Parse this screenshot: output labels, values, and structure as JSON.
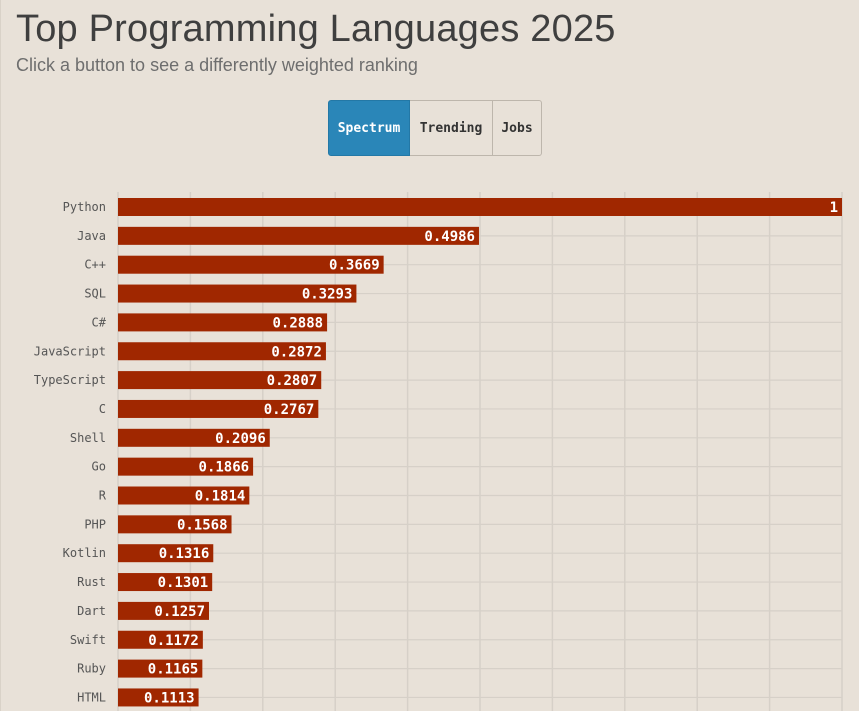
{
  "header": {
    "title": "Top Programming Languages 2025",
    "subtitle": "Click a button to see a differently weighted ranking"
  },
  "buttons": [
    {
      "label": "Spectrum",
      "active": true
    },
    {
      "label": "Trending",
      "active": false
    },
    {
      "label": "Jobs",
      "active": false
    }
  ],
  "colors": {
    "bar": "#a02700",
    "active_button": "#2a86b8",
    "background": "#e8e1d8",
    "grid": "#d6d0c8"
  },
  "chart_data": {
    "type": "bar",
    "orientation": "horizontal",
    "categories": [
      "Python",
      "Java",
      "C++",
      "SQL",
      "C#",
      "JavaScript",
      "TypeScript",
      "C",
      "Shell",
      "Go",
      "R",
      "PHP",
      "Kotlin",
      "Rust",
      "Dart",
      "Swift",
      "Ruby",
      "HTML"
    ],
    "values": [
      1,
      0.4986,
      0.3669,
      0.3293,
      0.2888,
      0.2872,
      0.2807,
      0.2767,
      0.2096,
      0.1866,
      0.1814,
      0.1568,
      0.1316,
      0.1301,
      0.1257,
      0.1172,
      0.1165,
      0.1113
    ],
    "xlim": [
      0,
      1
    ],
    "grid": true,
    "title": "Top Programming Languages 2025",
    "xlabel": "",
    "ylabel": ""
  }
}
